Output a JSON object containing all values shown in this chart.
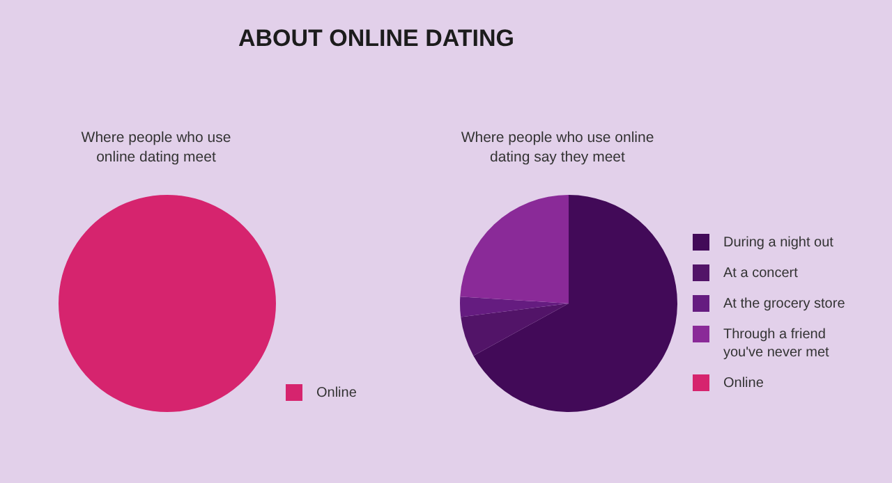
{
  "chart_data": [
    {
      "type": "pie",
      "title": "ABOUT ONLINE DATING",
      "subtitle": "Where people who use\nonline dating meet",
      "categories": [
        "Online"
      ],
      "values": [
        100
      ],
      "colors": [
        "#d6246e"
      ],
      "legend": "bottom right"
    },
    {
      "type": "pie",
      "title": "Where people who use online\ndating say they meet",
      "categories": [
        "During a night out",
        "At a concert",
        "At the grocery store",
        "Through a friend\nyou've never met",
        "Online"
      ],
      "values": [
        67,
        6,
        3,
        24,
        0
      ],
      "colors": [
        "#420a58",
        "#521468",
        "#651c80",
        "#8a2a98",
        "#d6246e"
      ],
      "legend": "right"
    }
  ]
}
